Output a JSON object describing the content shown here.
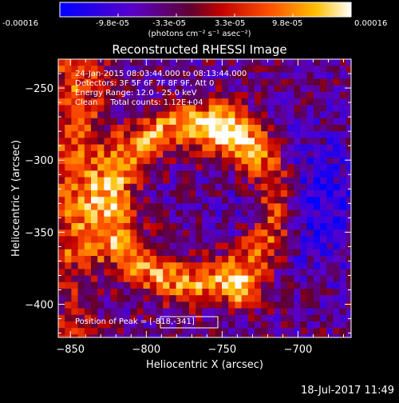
{
  "colorbar": {
    "ticks": [
      "-0.00016",
      "-9.8e-05",
      "-3.3e-05",
      "3.3e-05",
      "9.8e-05",
      "0.00016"
    ],
    "units_text": "(photons cm⁻² s⁻¹ asec⁻²)",
    "range": [
      -0.00016,
      0.00016
    ]
  },
  "annotations": {
    "time": "24-Jan-2015 08:03:44.000 to 08:13:44.000",
    "detectors": "Detectors: 3F 5F 6F 7F 8F 9F, Att 0",
    "energy": "Energy Range: 12.0 - 25.0 keV",
    "clean": "Clean     Total counts: 1.12E+04",
    "peak": "Position of Peak = [-818,-341]"
  },
  "footer": {
    "date": "18-Jul-2017 11:49"
  },
  "chart_data": {
    "type": "heatmap",
    "title": "Reconstructed RHESSI Image",
    "xlabel": "Heliocentric X (arcsec)",
    "ylabel": "Heliocentric Y (arcsec)",
    "xlim": [
      -858,
      -665
    ],
    "ylim": [
      -423,
      -230
    ],
    "xticks": [
      -850,
      -800,
      -750,
      -700
    ],
    "yticks": [
      -250,
      -300,
      -350,
      -400
    ],
    "colormap": "blue-purple-red-yellow-white (RHESSI color table)",
    "peak_position": [
      -818,
      -341
    ],
    "grid": false
  }
}
